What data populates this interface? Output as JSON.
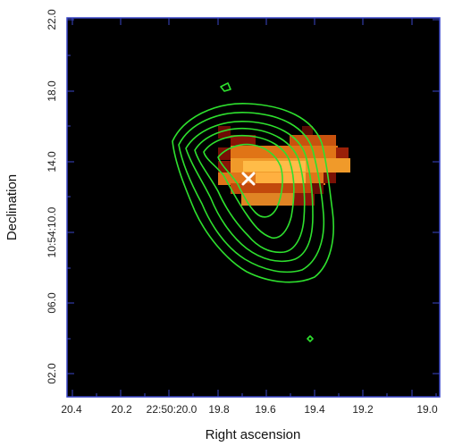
{
  "plot": {
    "xlabel": "Right ascension",
    "ylabel": "Declination",
    "x_ticks": [
      "20.4",
      "20.2",
      "22:50:20.0",
      "19.8",
      "19.6",
      "19.4",
      "19.2",
      "19.0"
    ],
    "y_ticks": [
      "22.0",
      "18.0",
      "14.0",
      "10:54:10.0",
      "06.0",
      "02.0"
    ]
  },
  "colors": {
    "background": "#000000",
    "frame": "#3a46c8",
    "contour": "#2ee02e",
    "marker": "#ffffff",
    "heat_dark": "#6e0b04",
    "heat_mid": "#b0320c",
    "heat_bright": "#e87a18",
    "heat_hot": "#ffbc48"
  },
  "marker": {
    "icon": "cross-marker-icon"
  }
}
